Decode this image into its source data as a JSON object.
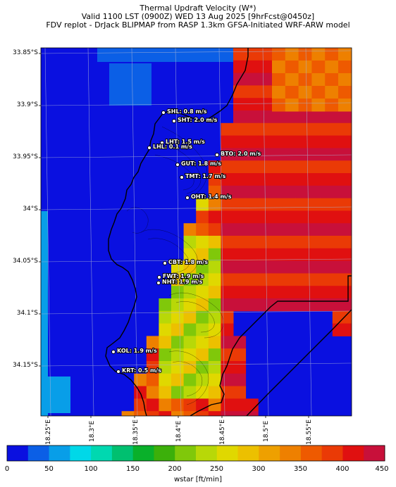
{
  "title": {
    "line1": "Thermal Updraft Velocity (W*)",
    "line2": "Valid 1100 LST (0900Z) WED 13 Aug 2025 [9hrFcst@0450z]",
    "line3": "FDV replot - DrJack BLIPMAP from RASP 1.3km GFSA-Initiated WRF-ARW model"
  },
  "axes": {
    "y_labels": [
      "33.85°S",
      "33.9°S",
      "33.95°S",
      "34°S",
      "34.05°S",
      "34.1°S",
      "34.15°S"
    ],
    "x_labels": [
      "18.25°E",
      "18.3°E",
      "18.35°E",
      "18.4°E",
      "18.45°E",
      "18.5°E",
      "18.55°E"
    ]
  },
  "stations": [
    {
      "label": "SHL: 0.8 m/s"
    },
    {
      "label": "SHT: 2.0 m/s"
    },
    {
      "label": "LHT: 1.5 m/s"
    },
    {
      "label": "LHL: 0.1 m/s"
    },
    {
      "label": "BTO: 2.0 m/s"
    },
    {
      "label": "GUT: 1.8 m/s"
    },
    {
      "label": "TMT: 1.7 m/s"
    },
    {
      "label": "OHT: 1.4 m/s"
    },
    {
      "label": "CBT: 1.8 m/s"
    },
    {
      "label": "FWT: 1.9 m/s"
    },
    {
      "label": "NHT: 1.9 m/s"
    },
    {
      "label": "KOL: 1.9 m/s"
    },
    {
      "label": "KRT: 0.5 m/s"
    }
  ],
  "colorbar": {
    "label": "wstar [ft/min]",
    "ticks": [
      "0",
      "50",
      "100",
      "150",
      "200",
      "250",
      "300",
      "350",
      "400",
      "450"
    ],
    "colors": [
      "#0a10e0",
      "#0b5fe6",
      "#089ee8",
      "#00d8e8",
      "#00d8b0",
      "#00c070",
      "#09b02a",
      "#3cb00a",
      "#80c80a",
      "#b8d808",
      "#e0d800",
      "#ecc000",
      "#eea000",
      "#ee8000",
      "#ee5a00",
      "#ea3a06",
      "#e01010",
      "#c8103a"
    ]
  },
  "colors": {
    "ocean": "#0a10e0",
    "coastline": "#000000",
    "grid": "#aab4d6"
  }
}
